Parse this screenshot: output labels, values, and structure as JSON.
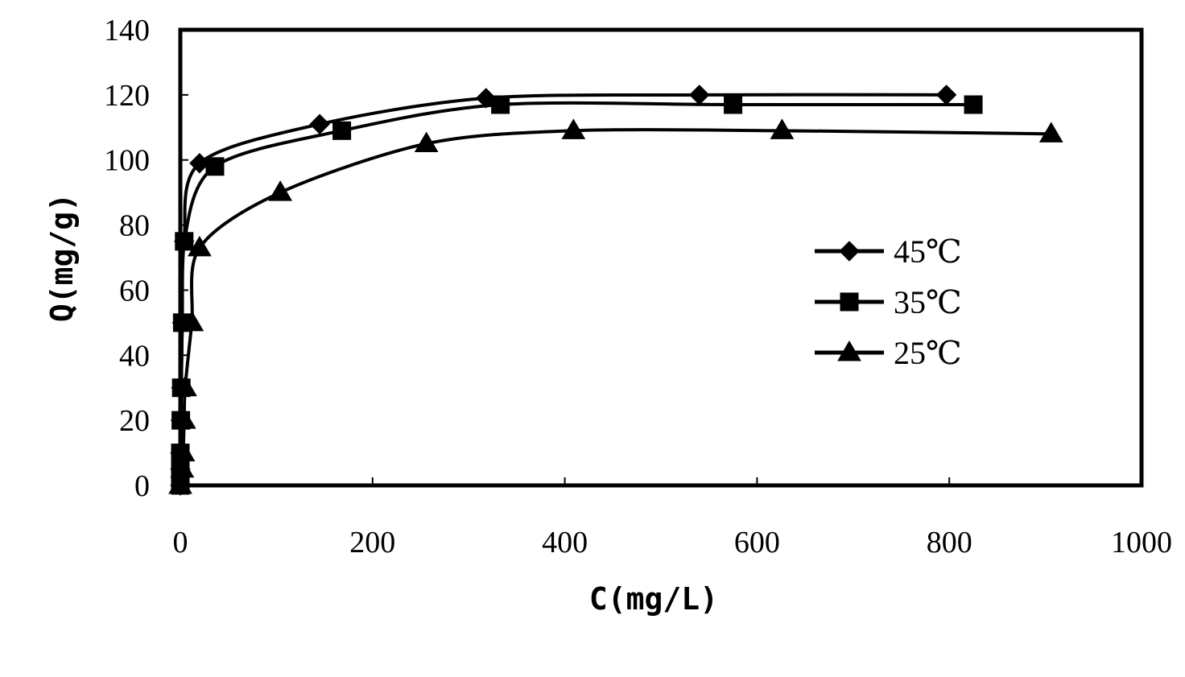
{
  "chart_data": {
    "type": "line",
    "title": "",
    "xlabel": "C(mg/L)",
    "ylabel": "Q(mg/g)",
    "xlim": [
      0,
      1000
    ],
    "ylim": [
      0,
      140
    ],
    "xticks": [
      "0",
      "200",
      "400",
      "600",
      "800",
      "1000"
    ],
    "yticks": [
      "0",
      "20",
      "40",
      "60",
      "80",
      "100",
      "120",
      "140"
    ],
    "grid": false,
    "legend_position": "right",
    "series": [
      {
        "name": "45℃",
        "marker": "diamond",
        "color": "#000000",
        "points": [
          [
            0,
            0
          ],
          [
            0,
            5
          ],
          [
            0,
            10
          ],
          [
            0.5,
            20
          ],
          [
            1,
            30
          ],
          [
            2,
            50
          ],
          [
            4,
            75
          ],
          [
            20,
            99
          ],
          [
            145,
            111
          ],
          [
            318,
            119
          ],
          [
            540,
            120
          ],
          [
            797,
            120
          ]
        ]
      },
      {
        "name": "35℃",
        "marker": "square",
        "color": "#000000",
        "points": [
          [
            0,
            0
          ],
          [
            0,
            5
          ],
          [
            0,
            10
          ],
          [
            0.5,
            20
          ],
          [
            1,
            30
          ],
          [
            2,
            50
          ],
          [
            4,
            75
          ],
          [
            36,
            98
          ],
          [
            168,
            109
          ],
          [
            333,
            117
          ],
          [
            575,
            117
          ],
          [
            825,
            117
          ]
        ]
      },
      {
        "name": "25℃",
        "marker": "triangle",
        "color": "#000000",
        "points": [
          [
            0,
            0
          ],
          [
            2,
            5
          ],
          [
            3,
            10
          ],
          [
            4,
            20
          ],
          [
            5,
            30
          ],
          [
            12,
            50
          ],
          [
            20,
            73
          ],
          [
            104,
            90
          ],
          [
            256,
            105
          ],
          [
            409,
            109
          ],
          [
            626,
            109
          ],
          [
            906,
            108
          ]
        ]
      }
    ]
  }
}
